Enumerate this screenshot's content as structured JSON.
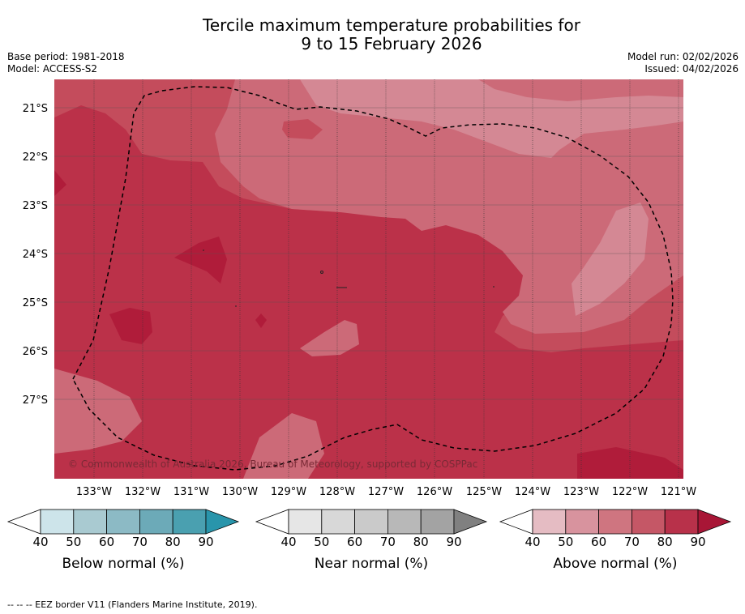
{
  "title": {
    "line1": "Tercile maximum temperature probabilities for",
    "line2": "9 to 15 February 2026"
  },
  "meta": {
    "base_period": "Base period: 1981-2018",
    "model": "Model: ACCESS-S2",
    "model_run": "Model run: 02/02/2026",
    "issued": "Issued: 04/02/2026"
  },
  "map": {
    "lat_labels": [
      "21°S",
      "22°S",
      "23°S",
      "24°S",
      "25°S",
      "26°S",
      "27°S"
    ],
    "lon_labels": [
      "133°W",
      "132°W",
      "131°W",
      "130°W",
      "129°W",
      "128°W",
      "127°W",
      "126°W",
      "125°W",
      "124°W",
      "123°W",
      "122°W",
      "121°W"
    ],
    "copyright": "© Commonwealth of Australia 2026, Bureau of Meteorology, supported by COSPPac",
    "colors": {
      "above_50": "#d48894",
      "above_60": "#cc6a78",
      "above_70": "#c44c5c",
      "above_80": "#bb3149",
      "above_90": "#b01c3a"
    }
  },
  "colorbars": [
    {
      "name": "below",
      "title": "Below normal (%)",
      "ticks": [
        "40",
        "50",
        "60",
        "70",
        "80",
        "90"
      ],
      "colors": [
        "#cde4ea",
        "#a9cad1",
        "#8cbac5",
        "#6caab8",
        "#4aa0b0",
        "#2995ab"
      ]
    },
    {
      "name": "near",
      "title": "Near normal (%)",
      "ticks": [
        "40",
        "50",
        "60",
        "70",
        "80",
        "90"
      ],
      "colors": [
        "#e6e6e6",
        "#d8d8d8",
        "#cacaca",
        "#b8b8b8",
        "#a3a3a3",
        "#808080"
      ]
    },
    {
      "name": "above",
      "title": "Above normal (%)",
      "ticks": [
        "40",
        "50",
        "60",
        "70",
        "80",
        "90"
      ],
      "colors": [
        "#e5bcc3",
        "#d8939e",
        "#cf7580",
        "#c55766",
        "#b8314a",
        "#a81636"
      ]
    }
  ],
  "footnote": "-- -- -- EEZ border V11 (Flanders Marine Institute, 2019)."
}
